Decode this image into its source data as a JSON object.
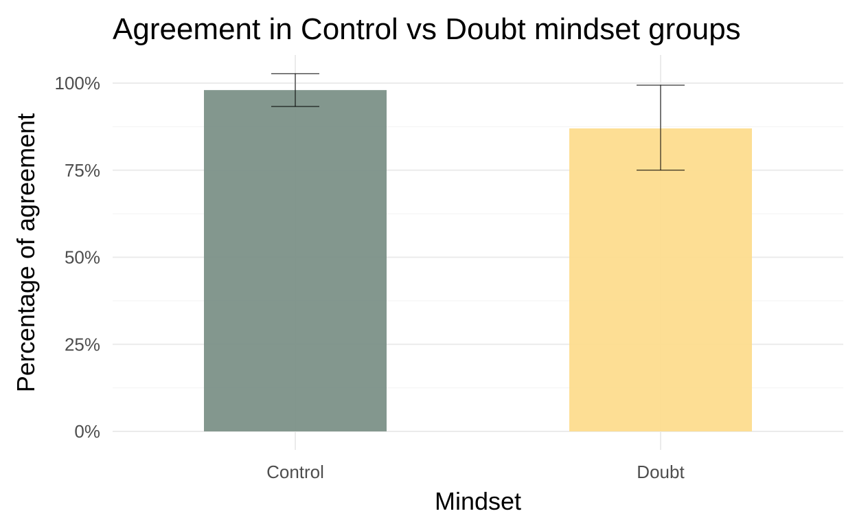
{
  "chart_data": {
    "type": "bar",
    "title": "Agreement in Control vs Doubt mindset groups",
    "xlabel": "Mindset",
    "ylabel": "Percentage of agreement",
    "categories": [
      "Control",
      "Doubt"
    ],
    "values": [
      98,
      87
    ],
    "error_lower": [
      93.3,
      75
    ],
    "error_upper": [
      102.7,
      99.4
    ],
    "ylim": [
      0,
      100
    ],
    "y_ticks": [
      0,
      25,
      50,
      75,
      100
    ],
    "y_tick_labels": [
      "0%",
      "25%",
      "50%",
      "75%",
      "100%"
    ],
    "grid": true,
    "colors": [
      "#7a8f85",
      "#fddc8c"
    ]
  }
}
